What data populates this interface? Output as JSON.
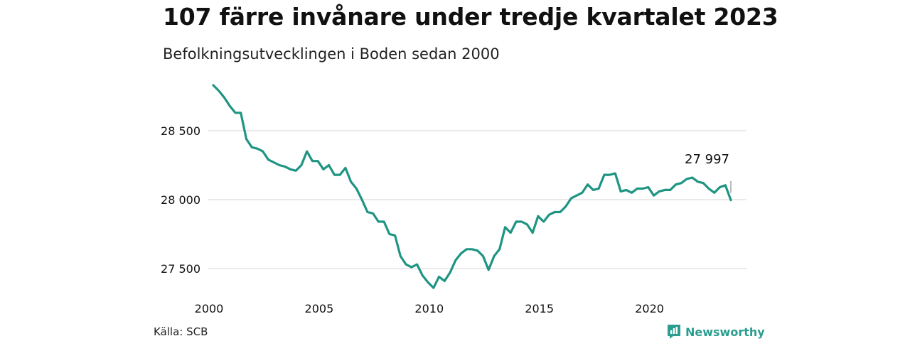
{
  "header": {
    "title": "107 färre invånare under tredje kvartalet 2023",
    "subtitle": "Befolkningsutvecklingen i Boden sedan 2000"
  },
  "footer": {
    "source": "Källa: SCB",
    "brand": "Newsworthy"
  },
  "colors": {
    "line": "#1f9483",
    "grid": "#dddddd",
    "brand": "#2a9d8f"
  },
  "chart_data": {
    "type": "line",
    "title": "107 färre invånare under tredje kvartalet 2023",
    "subtitle": "Befolkningsutvecklingen i Boden sedan 2000",
    "xlabel": "",
    "ylabel": "",
    "x_ticks": [
      "2000",
      "2005",
      "2010",
      "2015",
      "2020"
    ],
    "y_ticks": [
      {
        "value": 27500,
        "label": "27 500"
      },
      {
        "value": 28000,
        "label": "28 000"
      },
      {
        "value": 28500,
        "label": "28 500"
      }
    ],
    "xlim": [
      2000,
      2024
    ],
    "ylim": [
      27300,
      28950
    ],
    "grid": "horizontal",
    "annotation": {
      "label": "27 997",
      "value": 27997,
      "quarter": "2023 Q3"
    },
    "series": [
      {
        "x": [
          "2000 Q1",
          "2000 Q2",
          "2000 Q3",
          "2000 Q4",
          "2001 Q1",
          "2001 Q2",
          "2001 Q3",
          "2001 Q4",
          "2002 Q1",
          "2002 Q2",
          "2002 Q3",
          "2002 Q4",
          "2003 Q1",
          "2003 Q2",
          "2003 Q3",
          "2003 Q4",
          "2004 Q1",
          "2004 Q2",
          "2004 Q3",
          "2004 Q4",
          "2005 Q1",
          "2005 Q2",
          "2005 Q3",
          "2005 Q4",
          "2006 Q1",
          "2006 Q2",
          "2006 Q3",
          "2006 Q4",
          "2007 Q1",
          "2007 Q2",
          "2007 Q3",
          "2007 Q4",
          "2008 Q1",
          "2008 Q2",
          "2008 Q3",
          "2008 Q4",
          "2009 Q1",
          "2009 Q2",
          "2009 Q3",
          "2009 Q4",
          "2010 Q1",
          "2010 Q2",
          "2010 Q3",
          "2010 Q4",
          "2011 Q1",
          "2011 Q2",
          "2011 Q3",
          "2011 Q4",
          "2012 Q1",
          "2012 Q2",
          "2012 Q3",
          "2012 Q4",
          "2013 Q1",
          "2013 Q2",
          "2013 Q3",
          "2013 Q4",
          "2014 Q1",
          "2014 Q2",
          "2014 Q3",
          "2014 Q4",
          "2015 Q1",
          "2015 Q2",
          "2015 Q3",
          "2015 Q4",
          "2016 Q1",
          "2016 Q2",
          "2016 Q3",
          "2016 Q4",
          "2017 Q1",
          "2017 Q2",
          "2017 Q3",
          "2017 Q4",
          "2018 Q1",
          "2018 Q2",
          "2018 Q3",
          "2018 Q4",
          "2019 Q1",
          "2019 Q2",
          "2019 Q3",
          "2019 Q4",
          "2020 Q1",
          "2020 Q2",
          "2020 Q3",
          "2020 Q4",
          "2021 Q1",
          "2021 Q2",
          "2021 Q3",
          "2021 Q4",
          "2022 Q1",
          "2022 Q2",
          "2022 Q3",
          "2022 Q4",
          "2023 Q1",
          "2023 Q2",
          "2023 Q3"
        ],
        "values": [
          28830,
          28790,
          28740,
          28680,
          28630,
          28630,
          28440,
          28380,
          28370,
          28350,
          28290,
          28270,
          28250,
          28240,
          28220,
          28210,
          28250,
          28350,
          28280,
          28280,
          28220,
          28250,
          28180,
          28180,
          28230,
          28130,
          28080,
          28000,
          27910,
          27900,
          27840,
          27840,
          27750,
          27740,
          27590,
          27530,
          27510,
          27530,
          27450,
          27400,
          27360,
          27440,
          27410,
          27470,
          27560,
          27610,
          27640,
          27640,
          27630,
          27590,
          27490,
          27590,
          27640,
          27800,
          27760,
          27840,
          27840,
          27820,
          27760,
          27880,
          27840,
          27890,
          27910,
          27910,
          27950,
          28010,
          28030,
          28050,
          28110,
          28070,
          28080,
          28180,
          28180,
          28190,
          28060,
          28070,
          28050,
          28080,
          28080,
          28090,
          28030,
          28060,
          28070,
          28070,
          28110,
          28120,
          28150,
          28160,
          28130,
          28120,
          28080,
          28050,
          28090,
          28104,
          27997
        ]
      }
    ]
  }
}
